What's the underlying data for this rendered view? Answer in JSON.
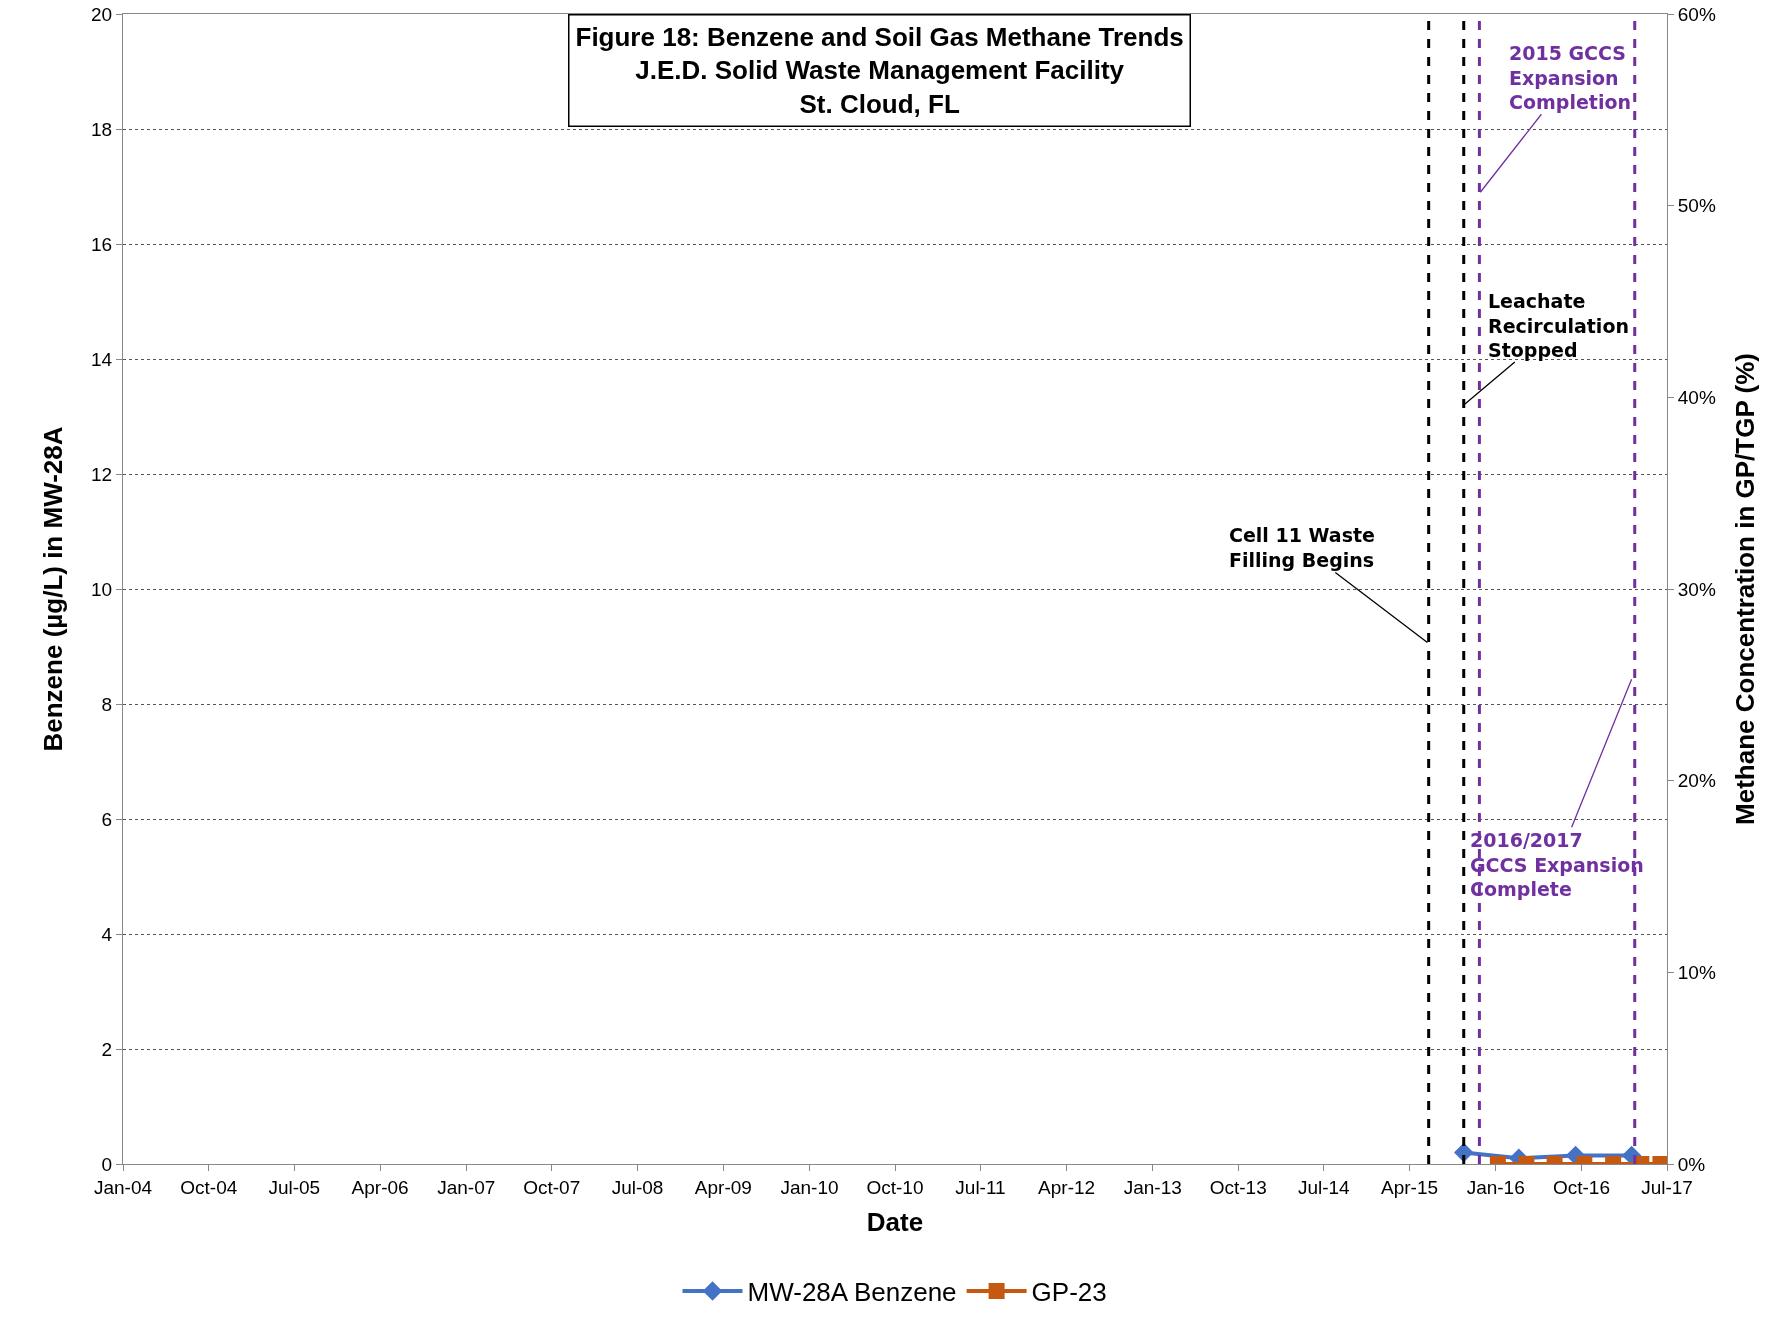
{
  "chart_data": {
    "type": "line",
    "title": "Figure 18: Benzene and Soil Gas Methane Trends\nJ.E.D. Solid Waste Management Facility\nSt. Cloud, FL",
    "xlabel": "Date",
    "ylabel": "Benzene (µg/L) in MW-28A",
    "y2label": "Methane Concentration in GP/TGP (%)",
    "series": [
      {
        "name": "MW-28A Benzene",
        "color": "#4472c4",
        "marker": "diamond",
        "x": [
          "2015-09-21",
          "2016-03-15",
          "2016-09-12",
          "2017-03-10"
        ],
        "values": [
          0.2,
          0.1,
          0.15,
          0.15
        ]
      },
      {
        "name": "GP-23",
        "color": "#c65911",
        "marker": "square",
        "axis": "y2",
        "x": [
          "2016-01-08",
          "2016-04-08",
          "2016-07-07",
          "2016-10-10",
          "2017-01-10",
          "2017-04-10",
          "2017-06-10"
        ],
        "values": [
          0,
          0,
          0,
          0,
          0,
          0,
          0
        ]
      }
    ],
    "xlim": [
      "2004-01-01",
      "2017-07-01"
    ],
    "xticks": [
      {
        "value": "2004-01-01",
        "label": "Jan-04"
      },
      {
        "value": "2004-10-01",
        "label": "Oct-04"
      },
      {
        "value": "2005-07-01",
        "label": "Jul-05"
      },
      {
        "value": "2006-04-01",
        "label": "Apr-06"
      },
      {
        "value": "2007-01-01",
        "label": "Jan-07"
      },
      {
        "value": "2007-10-01",
        "label": "Oct-07"
      },
      {
        "value": "2008-07-01",
        "label": "Jul-08"
      },
      {
        "value": "2009-04-01",
        "label": "Apr-09"
      },
      {
        "value": "2010-01-01",
        "label": "Jan-10"
      },
      {
        "value": "2010-10-01",
        "label": "Oct-10"
      },
      {
        "value": "2011-07-01",
        "label": "Jul-11"
      },
      {
        "value": "2012-04-01",
        "label": "Apr-12"
      },
      {
        "value": "2013-01-01",
        "label": "Jan-13"
      },
      {
        "value": "2013-10-01",
        "label": "Oct-13"
      },
      {
        "value": "2014-07-01",
        "label": "Jul-14"
      },
      {
        "value": "2015-04-01",
        "label": "Apr-15"
      },
      {
        "value": "2016-01-01",
        "label": "Jan-16"
      },
      {
        "value": "2016-10-01",
        "label": "Oct-16"
      },
      {
        "value": "2017-07-01",
        "label": "Jul-17"
      }
    ],
    "ylim": [
      0,
      20
    ],
    "yticks": [
      0,
      2,
      4,
      6,
      8,
      10,
      12,
      14,
      16,
      18,
      20
    ],
    "y2lim": [
      0,
      60
    ],
    "y2ticks": [
      {
        "value": 0,
        "label": "0%"
      },
      {
        "value": 10,
        "label": "10%"
      },
      {
        "value": 20,
        "label": "20%"
      },
      {
        "value": 30,
        "label": "30%"
      },
      {
        "value": 40,
        "label": "40%"
      },
      {
        "value": 50,
        "label": "50%"
      },
      {
        "value": 60,
        "label": "60%"
      }
    ],
    "grid": "y",
    "legend": "bottom",
    "line_style": "solid",
    "ref_lines": [
      {
        "axis": "x",
        "value": "2015-06-01",
        "color": "#000000",
        "line_style": "dashed"
      },
      {
        "axis": "x",
        "value": "2015-09-21",
        "color": "#000000",
        "line_style": "dashed"
      },
      {
        "axis": "x",
        "value": "2015-11-10",
        "color": "#7030a0",
        "line_style": "dashed"
      },
      {
        "axis": "x",
        "value": "2017-03-20",
        "color": "#7030a0",
        "line_style": "dashed"
      }
    ],
    "annotations": [
      {
        "text": "Cell 11 Waste\nFilling Begins",
        "x": "2015-05-28",
        "y": 9.07
      },
      {
        "text": "Leachate\nRecirculation\nStopped",
        "x": "2015-09-21",
        "y": 13.2
      },
      {
        "text": "2015 GCCS\nExpansion\nCompletion",
        "x": "2015-11-13",
        "y": 16.9
      },
      {
        "text": "2016/2017\nGCCS Expansion\nComplete",
        "x": "2017-03-10",
        "y": 8.43
      }
    ]
  }
}
